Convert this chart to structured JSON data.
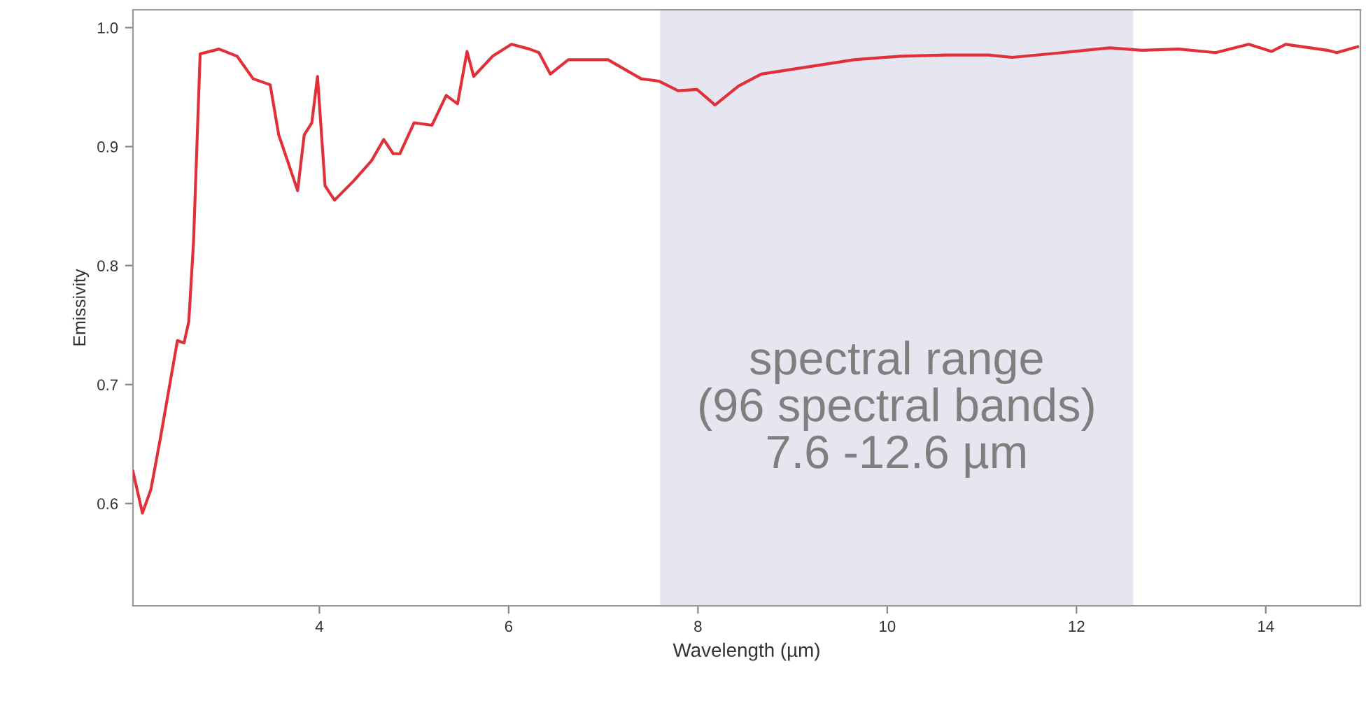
{
  "chart_data": {
    "type": "line",
    "xlabel": "Wavelength (µm)",
    "ylabel": "Emissivity",
    "xlim": [
      2.03,
      15.0
    ],
    "ylim": [
      0.514,
      1.015
    ],
    "xticks": [
      4,
      6,
      8,
      10,
      12,
      14
    ],
    "yticks": [
      0.6,
      0.7,
      0.8,
      0.9,
      {
        "value": 1,
        "label": "1.0"
      }
    ],
    "grid": false,
    "legend": false,
    "line_style": "solid",
    "series": [
      {
        "color": "#e0303a",
        "x": [
          2.03,
          2.13,
          2.22,
          2.32,
          2.5,
          2.57,
          2.62,
          2.67,
          2.74,
          2.94,
          3.13,
          3.3,
          3.48,
          3.57,
          3.77,
          3.84,
          3.92,
          3.98,
          4.06,
          4.16,
          4.36,
          4.55,
          4.68,
          4.78,
          4.85,
          5.0,
          5.19,
          5.34,
          5.46,
          5.56,
          5.63,
          5.83,
          6.03,
          6.22,
          6.32,
          6.44,
          6.63,
          7.05,
          7.4,
          7.59,
          7.79,
          7.99,
          8.18,
          8.43,
          8.67,
          9.16,
          9.65,
          10.14,
          10.63,
          11.07,
          11.32,
          11.85,
          12.35,
          12.69,
          13.08,
          13.47,
          13.82,
          14.06,
          14.21,
          14.65,
          14.75,
          14.97
        ],
        "values": [
          0.627,
          0.592,
          0.612,
          0.655,
          0.737,
          0.735,
          0.753,
          0.82,
          0.978,
          0.982,
          0.976,
          0.957,
          0.952,
          0.91,
          0.863,
          0.91,
          0.92,
          0.959,
          0.867,
          0.855,
          0.871,
          0.888,
          0.906,
          0.894,
          0.894,
          0.92,
          0.918,
          0.943,
          0.936,
          0.98,
          0.959,
          0.976,
          0.986,
          0.982,
          0.979,
          0.961,
          0.973,
          0.973,
          0.957,
          0.955,
          0.947,
          0.948,
          0.935,
          0.951,
          0.961,
          0.967,
          0.973,
          0.976,
          0.977,
          0.977,
          0.975,
          0.979,
          0.983,
          0.981,
          0.982,
          0.979,
          0.986,
          0.98,
          0.986,
          0.981,
          0.979,
          0.984
        ]
      }
    ],
    "bands": [
      {
        "axis": "x",
        "from": 7.6,
        "to": 12.6,
        "color": "#e6e6f0",
        "label": "spectral range\n(96 spectral bands)\n7.6 -12.6 µm"
      }
    ]
  }
}
